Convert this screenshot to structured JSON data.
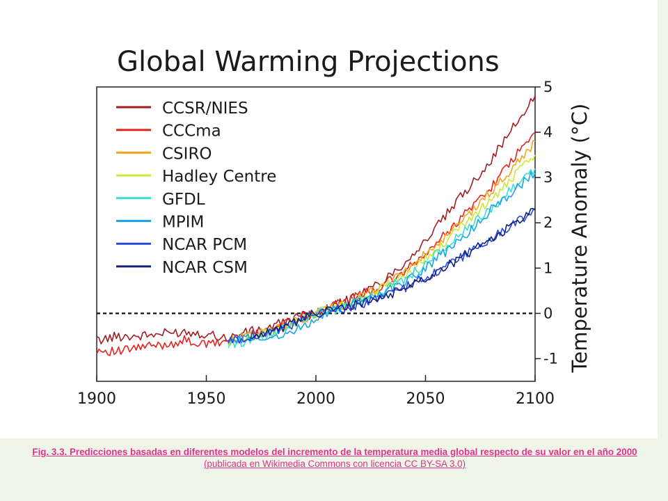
{
  "chart_data": {
    "type": "line",
    "title": "Global Warming Projections",
    "xlabel": "",
    "ylabel": "Temperature Anomaly (°C)",
    "xlim": [
      1900,
      2100
    ],
    "ylim": [
      -1.5,
      5
    ],
    "x_ticks": [
      1900,
      1950,
      2000,
      2050,
      2100
    ],
    "y_ticks": [
      -1,
      0,
      1,
      2,
      3,
      4,
      5
    ],
    "grid": false,
    "legend_position": "top-left",
    "reference_line": {
      "y": 0,
      "style": "dashed"
    },
    "x": [
      1900,
      1910,
      1920,
      1930,
      1940,
      1950,
      1960,
      1970,
      1980,
      1990,
      2000,
      2010,
      2020,
      2030,
      2040,
      2050,
      2060,
      2070,
      2080,
      2090,
      2100
    ],
    "series": [
      {
        "name": "CCSR/NIES",
        "color": "#a11e22",
        "values": [
          -0.6,
          -0.5,
          -0.5,
          -0.45,
          -0.4,
          -0.45,
          -0.55,
          -0.4,
          -0.3,
          -0.1,
          0.0,
          0.2,
          0.4,
          0.7,
          1.1,
          1.6,
          2.2,
          2.8,
          3.4,
          4.1,
          4.8
        ]
      },
      {
        "name": "CCCma",
        "color": "#e8231f",
        "values": [
          -0.8,
          -0.85,
          -0.75,
          -0.7,
          -0.6,
          -0.7,
          -0.6,
          -0.5,
          -0.35,
          -0.1,
          0.0,
          0.2,
          0.4,
          0.6,
          0.9,
          1.3,
          1.8,
          2.3,
          2.8,
          3.4,
          4.0
        ]
      },
      {
        "name": "CSIRO",
        "color": "#f5a51e",
        "values": [
          null,
          null,
          null,
          null,
          null,
          null,
          -0.6,
          -0.5,
          -0.4,
          -0.2,
          0.0,
          0.15,
          0.35,
          0.6,
          0.9,
          1.3,
          1.7,
          2.2,
          2.7,
          3.2,
          3.8
        ]
      },
      {
        "name": "Hadley Centre",
        "color": "#c8ea3a",
        "values": [
          null,
          null,
          null,
          null,
          null,
          null,
          -0.6,
          -0.5,
          -0.4,
          -0.2,
          0.0,
          0.15,
          0.35,
          0.55,
          0.8,
          1.2,
          1.6,
          2.1,
          2.5,
          3.0,
          3.5
        ]
      },
      {
        "name": "GFDL",
        "color": "#39e0d0",
        "values": [
          null,
          null,
          null,
          null,
          null,
          null,
          -0.7,
          -0.6,
          -0.45,
          -0.2,
          0.0,
          0.1,
          0.3,
          0.5,
          0.75,
          1.1,
          1.5,
          1.9,
          2.3,
          2.8,
          3.2
        ]
      },
      {
        "name": "MPIM",
        "color": "#17a6e8",
        "values": [
          null,
          null,
          null,
          null,
          null,
          null,
          -0.6,
          -0.55,
          -0.5,
          -0.4,
          -0.1,
          0.1,
          0.25,
          0.45,
          0.7,
          1.0,
          1.4,
          1.8,
          2.3,
          2.7,
          3.1
        ]
      },
      {
        "name": "NCAR PCM",
        "color": "#2846d8",
        "values": [
          null,
          null,
          null,
          null,
          null,
          null,
          -0.6,
          -0.5,
          -0.4,
          -0.25,
          0.0,
          0.1,
          0.2,
          0.35,
          0.55,
          0.8,
          1.05,
          1.35,
          1.65,
          1.95,
          2.3
        ]
      },
      {
        "name": "NCAR CSM",
        "color": "#12207a",
        "values": [
          null,
          null,
          null,
          null,
          null,
          null,
          null,
          -0.5,
          -0.4,
          -0.2,
          0.0,
          0.1,
          0.2,
          0.35,
          0.55,
          0.8,
          1.05,
          1.35,
          1.65,
          1.95,
          2.3
        ]
      }
    ]
  },
  "caption": {
    "main": "Fig. 3.3. Predicciones basadas en diferentes modelos del incremento de la temperatura media global respecto de su valor en el año 2000",
    "source": "(publicada en Wikimedia Commons con licencia CC BY-SA 3.0)"
  }
}
